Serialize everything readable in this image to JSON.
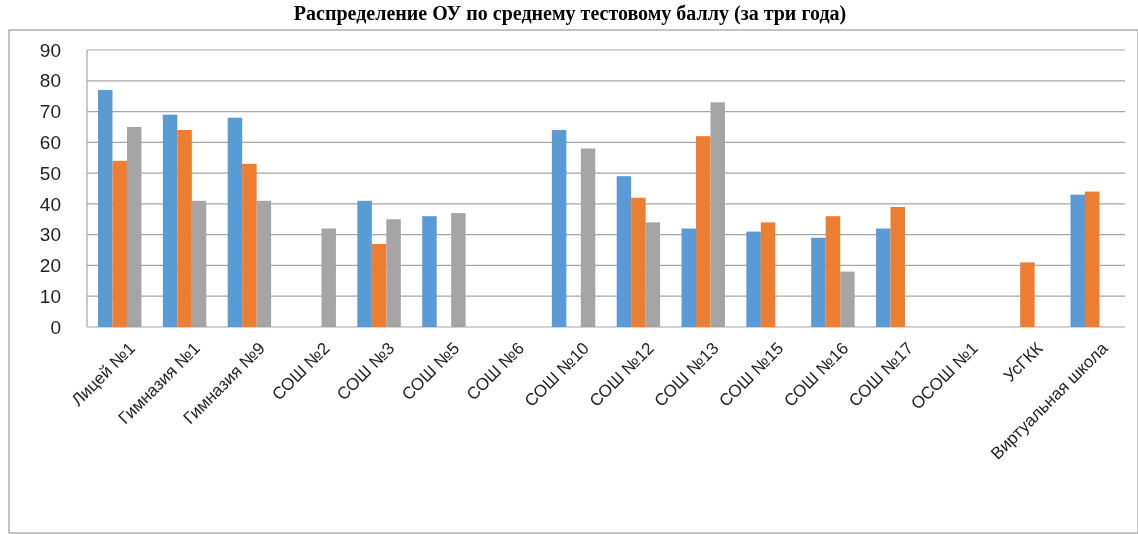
{
  "chart_data": {
    "type": "bar",
    "title": "Распределение ОУ по среднему тестовому баллу (за три года)",
    "categories": [
      "Лицей №1",
      "Гимназия №1",
      "Гимназия №9",
      "СОШ №2",
      "СОШ №3",
      "СОШ №5",
      "СОШ №6",
      "СОШ №10",
      "СОШ №12",
      "СОШ №13",
      "СОШ №15",
      "СОШ №16",
      "СОШ №17",
      "ОСОШ №1",
      "УсГКК",
      "Виртуальная школа"
    ],
    "series": [
      {
        "color": "#5b9bd5",
        "values": [
          77,
          69,
          68,
          null,
          41,
          36,
          null,
          64,
          49,
          32,
          31,
          29,
          32,
          null,
          null,
          43
        ]
      },
      {
        "color": "#ed7d31",
        "values": [
          54,
          64,
          53,
          null,
          27,
          null,
          null,
          null,
          42,
          62,
          34,
          36,
          39,
          null,
          21,
          44
        ]
      },
      {
        "color": "#a5a5a5",
        "values": [
          65,
          41,
          41,
          32,
          35,
          37,
          null,
          58,
          34,
          73,
          null,
          18,
          null,
          null,
          null,
          null
        ]
      }
    ],
    "ylim": [
      0,
      90
    ],
    "yticks": [
      0,
      10,
      20,
      30,
      40,
      50,
      60,
      70,
      80,
      90
    ],
    "grid": "y"
  }
}
